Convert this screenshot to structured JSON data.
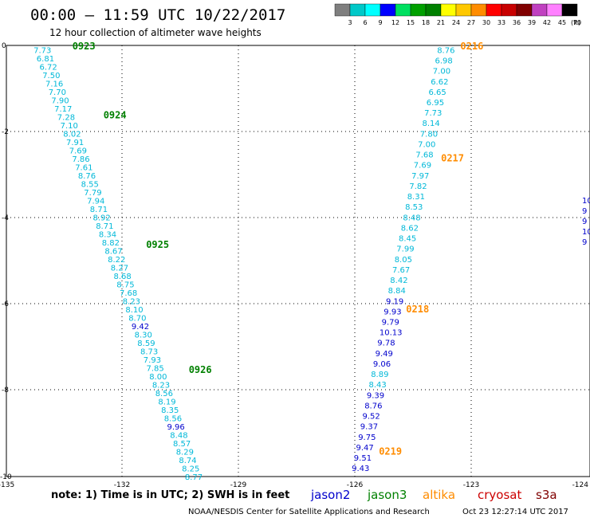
{
  "header": {
    "title": "00:00 — 11:59 UTC 10/22/2017",
    "subtitle": "12 hour collection of altimeter wave heights"
  },
  "colorbar": {
    "unit": "(ft)",
    "labels": [
      "3",
      "6",
      "9",
      "12",
      "15",
      "18",
      "21",
      "24",
      "27",
      "30",
      "33",
      "36",
      "39",
      "42",
      "45",
      "70"
    ],
    "colors": [
      "#7f7f7f",
      "#00c8c8",
      "#00ffff",
      "#0000ff",
      "#00e060",
      "#00a000",
      "#008000",
      "#ffff00",
      "#ffc800",
      "#ff8c00",
      "#ff0000",
      "#c80000",
      "#800000",
      "#c040c0",
      "#ff80ff",
      "#000000"
    ]
  },
  "note": "note: 1) Time is in UTC; 2) SWH is in feet",
  "footer_left": "NOAA/NESDIS Center for Satellite Applications and Research",
  "footer_right": "Oct 23 12:27:14 UTC 2017",
  "chart_data": {
    "type": "scatter",
    "xlim": [
      -135,
      -124
    ],
    "ylim": [
      -10,
      0
    ],
    "x_ticks": [
      "-135",
      "-132",
      "-129",
      "-126",
      "-123",
      "-124"
    ],
    "y_ticks": [
      "0",
      "-2",
      "-4",
      "-6",
      "-8",
      "-10"
    ],
    "grid": true,
    "legend": [
      {
        "name": "jason2",
        "color": "#0000cc"
      },
      {
        "name": "jason3",
        "color": "#008000"
      },
      {
        "name": "altika",
        "color": "#ff8c00"
      },
      {
        "name": "cryosat",
        "color": "#cc0000"
      },
      {
        "name": "s3a",
        "color": "#800000"
      }
    ],
    "tracks": [
      {
        "satellite": "jason3",
        "x_start": -134.3,
        "x_end": -130.4,
        "y_start": -0.1,
        "y_end": -10.0,
        "values": [
          "7.73",
          "6.81",
          "6.72",
          "7.50",
          "7.16",
          "7.70",
          "7.90",
          "7.17",
          "7.28",
          "7.10",
          "8.02",
          "7.91",
          "7.69",
          "7.86",
          "7.61",
          "8.76",
          "8.55",
          "7.79",
          "7.94",
          "8.71",
          "8.92",
          "8.71",
          "8.34",
          "8.82",
          "8.67",
          "8.22",
          "8.27",
          "8.68",
          "8.75",
          "7.68",
          "8.23",
          "8.10",
          "8.70",
          "9.42",
          "8.30",
          "8.59",
          "8.73",
          "7.93",
          "7.85",
          "8.00",
          "8.23",
          "8.56",
          "8.19",
          "8.35",
          "8.56",
          "9.96",
          "8.48",
          "8.57",
          "8.29",
          "8.74",
          "8.25",
          "8.77"
        ],
        "colors": [
          "c",
          "c",
          "c",
          "c",
          "c",
          "c",
          "c",
          "c",
          "c",
          "c",
          "c",
          "c",
          "c",
          "c",
          "c",
          "c",
          "c",
          "c",
          "c",
          "c",
          "c",
          "c",
          "c",
          "c",
          "c",
          "c",
          "c",
          "c",
          "c",
          "c",
          "c",
          "c",
          "c",
          "b",
          "c",
          "c",
          "c",
          "c",
          "c",
          "c",
          "c",
          "c",
          "c",
          "c",
          "c",
          "b",
          "c",
          "c",
          "c",
          "c",
          "c",
          "c"
        ],
        "pass_times": [
          {
            "label": "0923",
            "x": -133.3,
            "y": 0.0
          },
          {
            "label": "0924",
            "x": -132.5,
            "y": -1.6
          },
          {
            "label": "0925",
            "x": -131.4,
            "y": -4.6
          },
          {
            "label": "0926",
            "x": -130.3,
            "y": -7.5
          }
        ]
      },
      {
        "satellite": "altika",
        "x_start": -123.9,
        "x_end": -126.1,
        "y_start": -0.1,
        "y_end": -9.8,
        "values": [
          "8.76",
          "6.98",
          "7.00",
          "6.62",
          "6.65",
          "6.95",
          "7.73",
          "8.14",
          "7.80",
          "7.00",
          "7.68",
          "7.69",
          "7.97",
          "7.82",
          "8.31",
          "8.53",
          "8.48",
          "8.62",
          "8.45",
          "7.99",
          "8.05",
          "7.67",
          "8.42",
          "8.84",
          "9.19",
          "9.93",
          "9.79",
          "10.13",
          "9.78",
          "9.49",
          "9.06",
          "8.89",
          "8.43",
          "9.39",
          "8.76",
          "9.52",
          "9.37",
          "9.75",
          "9.47",
          "9.51",
          "9.43"
        ],
        "colors": [
          "c",
          "c",
          "c",
          "c",
          "c",
          "c",
          "c",
          "c",
          "c",
          "c",
          "c",
          "c",
          "c",
          "c",
          "c",
          "c",
          "c",
          "c",
          "c",
          "c",
          "c",
          "c",
          "c",
          "c",
          "b",
          "b",
          "b",
          "b",
          "b",
          "b",
          "b",
          "c",
          "c",
          "b",
          "b",
          "b",
          "b",
          "b",
          "b",
          "b",
          "b"
        ],
        "pass_times": [
          {
            "label": "0216",
            "x": -123.3,
            "y": 0.0
          },
          {
            "label": "0217",
            "x": -123.8,
            "y": -2.6
          },
          {
            "label": "0218",
            "x": -124.7,
            "y": -6.1
          },
          {
            "label": "0219",
            "x": -125.4,
            "y": -9.4
          }
        ]
      },
      {
        "satellite": "partial-edge",
        "values": [
          "10",
          "9",
          "9",
          "10",
          "9"
        ],
        "colors": [
          "b",
          "b",
          "b",
          "b",
          "b"
        ],
        "pass_times": []
      }
    ]
  }
}
